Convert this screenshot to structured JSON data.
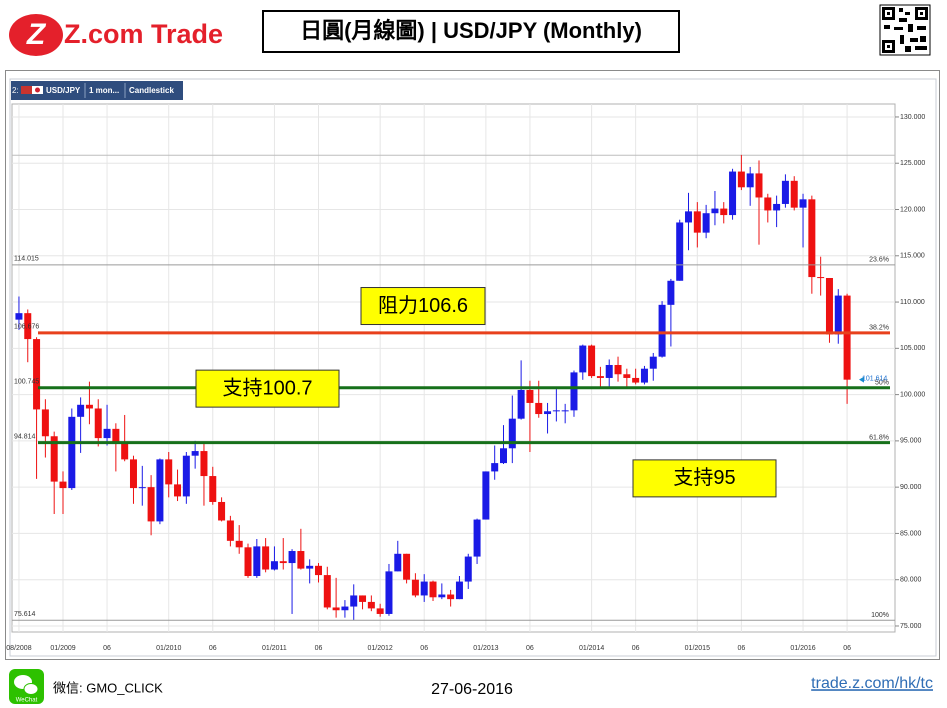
{
  "header": {
    "logo": "Z.com Trade",
    "title": "日圓(月線圖) | USD/JPY (Monthly)"
  },
  "toolbar": {
    "index": "2:",
    "symbol": "USD/JPY",
    "period": "1 mon...",
    "style": "Candlestick"
  },
  "footer": {
    "icon": "WeChat",
    "wechat": "微信: GMO_CLICK",
    "date": "27-06-2016",
    "url": "trade.z.com/hk/tc"
  },
  "chart_data": {
    "type": "candlestick",
    "categories": [
      "08/2008",
      null,
      null,
      null,
      null,
      "01/2009",
      null,
      null,
      null,
      null,
      "06",
      null,
      null,
      null,
      null,
      null,
      null,
      "01/2010",
      null,
      null,
      null,
      null,
      "06",
      null,
      null,
      null,
      null,
      null,
      null,
      "01/2011",
      null,
      null,
      null,
      null,
      "06",
      null,
      null,
      null,
      null,
      null,
      null,
      "01/2012",
      null,
      null,
      null,
      null,
      "06",
      null,
      null,
      null,
      null,
      null,
      null,
      "01/2013",
      null,
      null,
      null,
      null,
      "06",
      null,
      null,
      null,
      null,
      null,
      null,
      "01/2014",
      null,
      null,
      null,
      null,
      "06",
      null,
      null,
      null,
      null,
      null,
      null,
      "01/2015",
      null,
      null,
      null,
      null,
      "06",
      null,
      null,
      null,
      null,
      null,
      null,
      "01/2016",
      null,
      null,
      null,
      null,
      "06"
    ],
    "open": [
      108.1,
      108.8,
      106,
      98.4,
      95.5,
      90.6,
      89.9,
      97.6,
      98.9,
      98.5,
      95.3,
      96.3,
      94.7,
      93,
      89.9,
      90,
      86.3,
      93,
      90.3,
      89,
      93.4,
      93.9,
      91.2,
      88.4,
      86.4,
      84.2,
      83.5,
      80.4,
      83.6,
      81.1,
      82,
      81.8,
      83.1,
      81.2,
      81.5,
      80.5,
      77,
      76.7,
      77.1,
      78.3,
      77.6,
      76.9,
      76.3,
      80.9,
      82.8,
      80,
      78.3,
      79.8,
      78.1,
      78.4,
      77.9,
      79.8,
      82.5,
      86.5,
      91.7,
      92.6,
      94.2,
      97.4,
      100.5,
      99.1,
      97.9,
      98.2,
      98.3,
      98.3,
      102.4,
      105.3,
      102,
      101.8,
      103.2,
      102.2,
      101.8,
      101.3,
      102.8,
      104.1,
      109.7,
      112.3,
      118.6,
      119.8,
      117.5,
      119.6,
      120.1,
      119.4,
      124.1,
      122.4,
      123.9,
      121.3,
      119.9,
      120.6,
      123.1,
      120.2,
      121.1,
      112.7,
      112.6,
      106.5,
      110.7
    ],
    "high": [
      110.6,
      109.2,
      106.2,
      99.5,
      96.0,
      91.7,
      98.5,
      99.7,
      101.4,
      99.5,
      98.9,
      96.9,
      97.8,
      93.4,
      92.3,
      91.3,
      93.1,
      93.8,
      91.9,
      93.8,
      95.0,
      94.9,
      92.2,
      88.9,
      86.9,
      85.9,
      83.9,
      84.4,
      84.5,
      83.6,
      84.5,
      83.3,
      85.5,
      82.2,
      81.8,
      81.4,
      80.2,
      77.8,
      79.5,
      78.3,
      78.3,
      77.4,
      81.7,
      84.2,
      82.8,
      80.7,
      80.6,
      79.9,
      79.6,
      78.9,
      80.4,
      82.8,
      86.6,
      91.7,
      94.5,
      96.7,
      99.9,
      103.7,
      101.5,
      101.5,
      99.1,
      100.6,
      99.0,
      102.6,
      105.4,
      105.4,
      103,
      103.8,
      104.1,
      102.8,
      102.8,
      103.1,
      104.5,
      110.1,
      112.5,
      118.9,
      121.8,
      120.8,
      120.5,
      122.0,
      120.8,
      124.4,
      125.9,
      124.6,
      125.3,
      121.7,
      121.5,
      123.8,
      123.6,
      121.7,
      121.5,
      114.9,
      112.6,
      111.4,
      110.9
    ],
    "low": [
      107.0,
      103.5,
      90.9,
      93.2,
      87.1,
      87.1,
      89.7,
      93.7,
      96.8,
      94.4,
      94.5,
      91.7,
      92.8,
      88.2,
      88.0,
      84.8,
      86.0,
      88.9,
      88.5,
      88.2,
      92.0,
      88.0,
      88.1,
      86.3,
      83.6,
      82.8,
      80.2,
      80.2,
      80.8,
      81.0,
      81.1,
      76.3,
      81.1,
      79.6,
      79.7,
      76.8,
      75.9,
      75.9,
      75.6,
      76.8,
      76.6,
      76.0,
      76.1,
      80.9,
      79.6,
      78.1,
      77.6,
      77.7,
      77.9,
      77.1,
      77.9,
      79.0,
      81.7,
      86.5,
      90.8,
      92.5,
      92.6,
      97.3,
      93.8,
      97.5,
      95.8,
      97.1,
      96.9,
      97.6,
      101.6,
      101.8,
      100.8,
      100.8,
      101.4,
      100.8,
      101.1,
      101.1,
      101.5,
      104.0,
      105.2,
      112.3,
      115.6,
      115.9,
      116.9,
      118.3,
      118.5,
      118.9,
      122.1,
      120.4,
      116.2,
      118.6,
      118.1,
      120.2,
      119.9,
      115.9,
      110.9,
      110.7,
      105.6,
      105.5,
      99.0
    ],
    "close": [
      108.8,
      106,
      98.4,
      95.5,
      90.6,
      89.9,
      97.6,
      98.9,
      98.5,
      95.3,
      96.3,
      94.7,
      93,
      89.9,
      90,
      86.3,
      93,
      90.3,
      89,
      93.4,
      93.9,
      91.2,
      88.4,
      86.4,
      84.2,
      83.5,
      80.4,
      83.6,
      81.1,
      82,
      81.8,
      83.1,
      81.2,
      81.5,
      80.5,
      77,
      76.7,
      77.1,
      78.3,
      77.6,
      76.9,
      76.3,
      80.9,
      82.8,
      80,
      78.3,
      79.8,
      78.1,
      78.4,
      77.9,
      79.8,
      82.5,
      86.5,
      91.7,
      92.6,
      94.2,
      97.4,
      100.5,
      99.1,
      97.9,
      98.2,
      98.3,
      98.3,
      102.4,
      105.3,
      102,
      101.8,
      103.2,
      102.2,
      101.8,
      101.3,
      102.8,
      104.1,
      109.7,
      112.3,
      118.6,
      119.8,
      117.5,
      119.6,
      120.1,
      119.4,
      124.1,
      122.4,
      123.9,
      121.3,
      119.9,
      120.6,
      123.1,
      120.2,
      121.1,
      112.7,
      112.6,
      106.5,
      110.7,
      101.614
    ],
    "up_color": "#1a1ae6",
    "down_color": "#ee1111",
    "ylim": [
      74.35,
      131.4
    ],
    "yticks": [
      {
        "value": 75,
        "label": "75.000"
      },
      {
        "value": 80,
        "label": "80.000"
      },
      {
        "value": 85,
        "label": "85.000"
      },
      {
        "value": 90,
        "label": "90.000"
      },
      {
        "value": 95,
        "label": "95.000"
      },
      {
        "value": 100,
        "label": "100.000"
      },
      {
        "value": 105,
        "label": "105.000"
      },
      {
        "value": 110,
        "label": "110.000"
      },
      {
        "value": 115,
        "label": "115.000"
      },
      {
        "value": 120,
        "label": "120.000"
      },
      {
        "value": 125,
        "label": "125.000"
      },
      {
        "value": 130,
        "label": "130.000"
      }
    ],
    "grid": true,
    "fib_high": 125.86,
    "levels": [
      {
        "value": 114.015,
        "percent": "23.6%",
        "color": "#9a9a9a",
        "width": 1
      },
      {
        "value": 106.676,
        "percent": "38.2%",
        "color": "#e8401c",
        "width": 3
      },
      {
        "value": 100.745,
        "percent": "50%",
        "color": "#16701a",
        "width": 3
      },
      {
        "value": 94.814,
        "percent": "61.8%",
        "color": "#16701a",
        "width": 3
      },
      {
        "value": 75.614,
        "percent": "100%",
        "color": "#9a9a9a",
        "width": 1
      }
    ],
    "current_price": 101.614,
    "annotations": [
      {
        "text": "阻力106.6",
        "value": 106.6
      },
      {
        "text": "支持100.7",
        "value": 100.7
      },
      {
        "text": "支持95",
        "value": 95
      }
    ]
  }
}
